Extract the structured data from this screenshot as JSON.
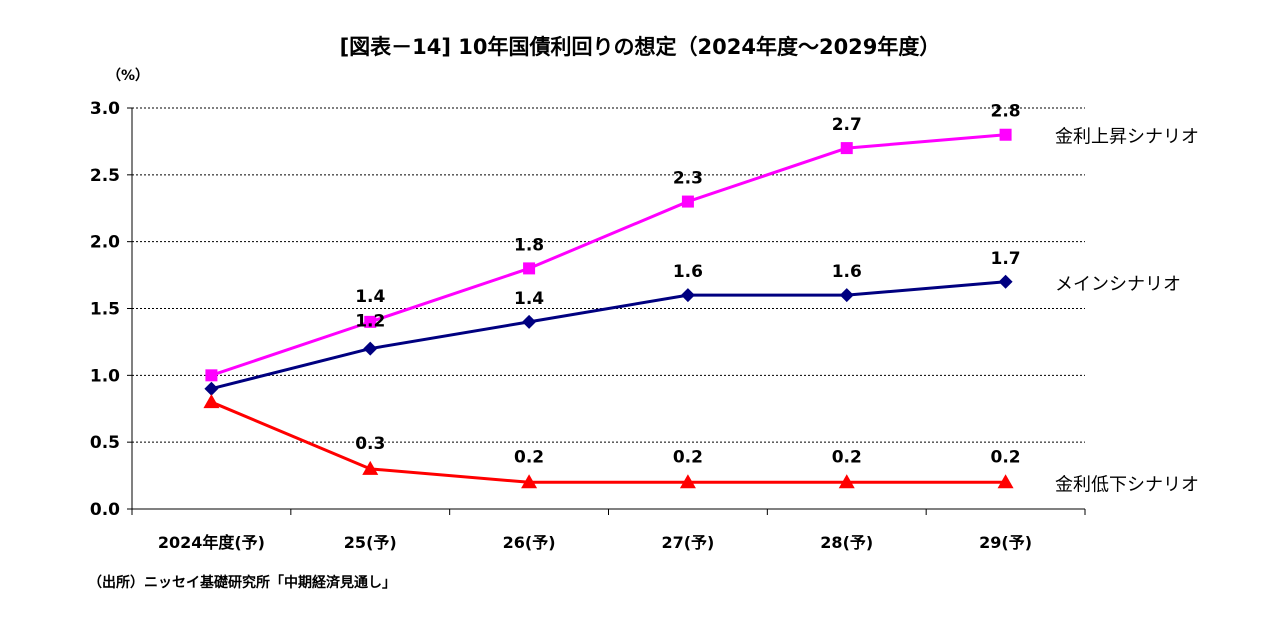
{
  "chart_data": {
    "type": "line",
    "title": "[図表－14] 10年国債利回りの想定（2024年度～2029年度）",
    "unit_label": "（%）",
    "categories": [
      "2024年度(予)",
      "25(予)",
      "26(予)",
      "27(予)",
      "28(予)",
      "29(予)"
    ],
    "ylim": [
      0,
      3.0
    ],
    "yticks": [
      "0.0",
      "0.5",
      "1.0",
      "1.5",
      "2.0",
      "2.5",
      "3.0"
    ],
    "grid": true,
    "series": [
      {
        "name": "金利上昇シナリオ",
        "values": [
          1.0,
          1.4,
          1.8,
          2.3,
          2.7,
          2.8
        ],
        "labels": [
          "",
          "1.4",
          "1.8",
          "2.3",
          "2.7",
          "2.8"
        ],
        "color": "#ff00ff",
        "marker": "square"
      },
      {
        "name": "メインシナリオ",
        "values": [
          0.9,
          1.2,
          1.4,
          1.6,
          1.6,
          1.7
        ],
        "labels": [
          "",
          "1.2",
          "1.4",
          "1.6",
          "1.6",
          "1.7"
        ],
        "color": "#000080",
        "marker": "diamond"
      },
      {
        "name": "金利低下シナリオ",
        "values": [
          0.8,
          0.3,
          0.2,
          0.2,
          0.2,
          0.2
        ],
        "labels": [
          "",
          "0.3",
          "0.2",
          "0.2",
          "0.2",
          "0.2"
        ],
        "color": "#ff0000",
        "marker": "triangle"
      }
    ],
    "source": "（出所）ニッセイ基礎研究所「中期経済見通し」"
  }
}
